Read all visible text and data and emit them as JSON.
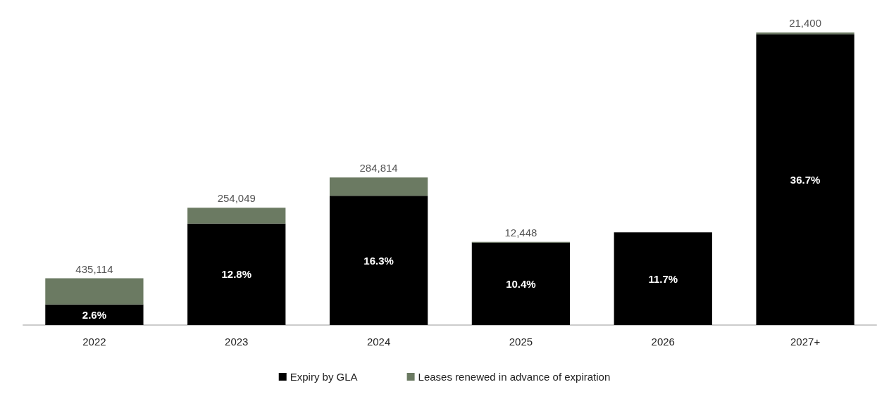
{
  "chart_data": {
    "type": "bar",
    "stacked": true,
    "legend": "bottom",
    "tick_labels": "x",
    "ylim": [
      0,
      37
    ],
    "categories": [
      "2022",
      "2023",
      "2024",
      "2025",
      "2026",
      "2027+"
    ],
    "series": [
      {
        "name": "Expiry by GLA",
        "color": "#000000",
        "values": [
          2.6,
          12.8,
          16.3,
          10.4,
          11.7,
          36.7
        ],
        "value_labels": [
          "2.6%",
          "12.8%",
          "16.3%",
          "10.4%",
          "11.7%",
          "36.7%"
        ]
      },
      {
        "name": "Leases renewed in advance of expiration",
        "color": "#6b7a62",
        "values": [
          3.3,
          2.0,
          2.3,
          0.1,
          0,
          0.2
        ]
      }
    ],
    "annotations": [
      {
        "text": "435,114",
        "x": "2022",
        "y": 5.9
      },
      {
        "text": "254,049",
        "x": "2023",
        "y": 14.8
      },
      {
        "text": "284,814",
        "x": "2024",
        "y": 18.6
      },
      {
        "text": "12,448",
        "x": "2025",
        "y": 10.5
      },
      {
        "text": "21,400",
        "x": "2027+",
        "y": 36.9
      }
    ]
  }
}
